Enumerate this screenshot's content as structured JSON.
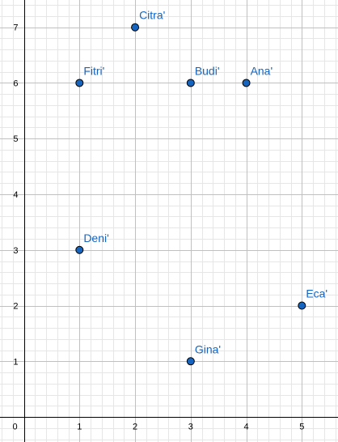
{
  "chart_data": {
    "type": "scatter",
    "title": "",
    "xlabel": "",
    "ylabel": "",
    "xlim": [
      -0.43,
      5.65
    ],
    "ylim": [
      -0.45,
      7.49
    ],
    "grid": true,
    "minor_grid_step": 0.2,
    "x_ticks": [
      0,
      1,
      2,
      3,
      4,
      5
    ],
    "y_ticks": [
      1,
      2,
      3,
      4,
      5,
      6,
      7
    ],
    "origin_label": "0",
    "points": [
      {
        "label": "Citra'",
        "x": 2,
        "y": 7
      },
      {
        "label": "Fitri'",
        "x": 1,
        "y": 6
      },
      {
        "label": "Budi'",
        "x": 3,
        "y": 6
      },
      {
        "label": "Ana'",
        "x": 4,
        "y": 6
      },
      {
        "label": "Deni'",
        "x": 1,
        "y": 3
      },
      {
        "label": "Eca'",
        "x": 5,
        "y": 2
      },
      {
        "label": "Gina'",
        "x": 3,
        "y": 1
      }
    ],
    "colors": {
      "point_fill": "#1565c0",
      "point_stroke": "#000000",
      "label": "#1565c0",
      "major_grid": "#c0c0c0",
      "minor_grid": "#e6e6e6",
      "axis": "#000000"
    }
  }
}
